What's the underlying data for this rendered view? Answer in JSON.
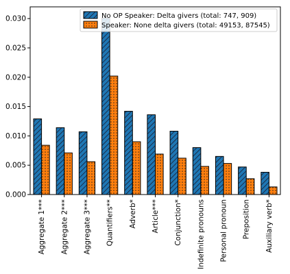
{
  "chart_data": {
    "type": "bar",
    "categories": [
      "Aggregate 1***",
      "Aggregate 2***",
      "Aggregate 3***",
      "Quantifiers**",
      "Adverb*",
      "Article***",
      "Conjunction*",
      "Indefinite pronouns",
      "Personal pronoun",
      "Preposition",
      "Auxiliary verb*"
    ],
    "series": [
      {
        "name": "No OP Speaker: Delta givers (total: 747, 909)",
        "color": "#1f77b4",
        "hatch": "diagonal",
        "values": [
          0.0129,
          0.0114,
          0.0107,
          0.0301,
          0.0142,
          0.0136,
          0.0108,
          0.008,
          0.0065,
          0.0047,
          0.0038
        ]
      },
      {
        "name": "Speaker: None delta givers (total: 49153, 87545)",
        "color": "#ff7f0e",
        "hatch": "dots",
        "values": [
          0.0084,
          0.0071,
          0.0056,
          0.0202,
          0.009,
          0.0069,
          0.0062,
          0.0048,
          0.0053,
          0.0027,
          0.0013
        ]
      }
    ],
    "yticks": [
      "0.000",
      "0.005",
      "0.010",
      "0.015",
      "0.020",
      "0.025",
      "0.030"
    ],
    "ylim": [
      0,
      0.032
    ],
    "legend_position": "top-right",
    "grid": false
  }
}
